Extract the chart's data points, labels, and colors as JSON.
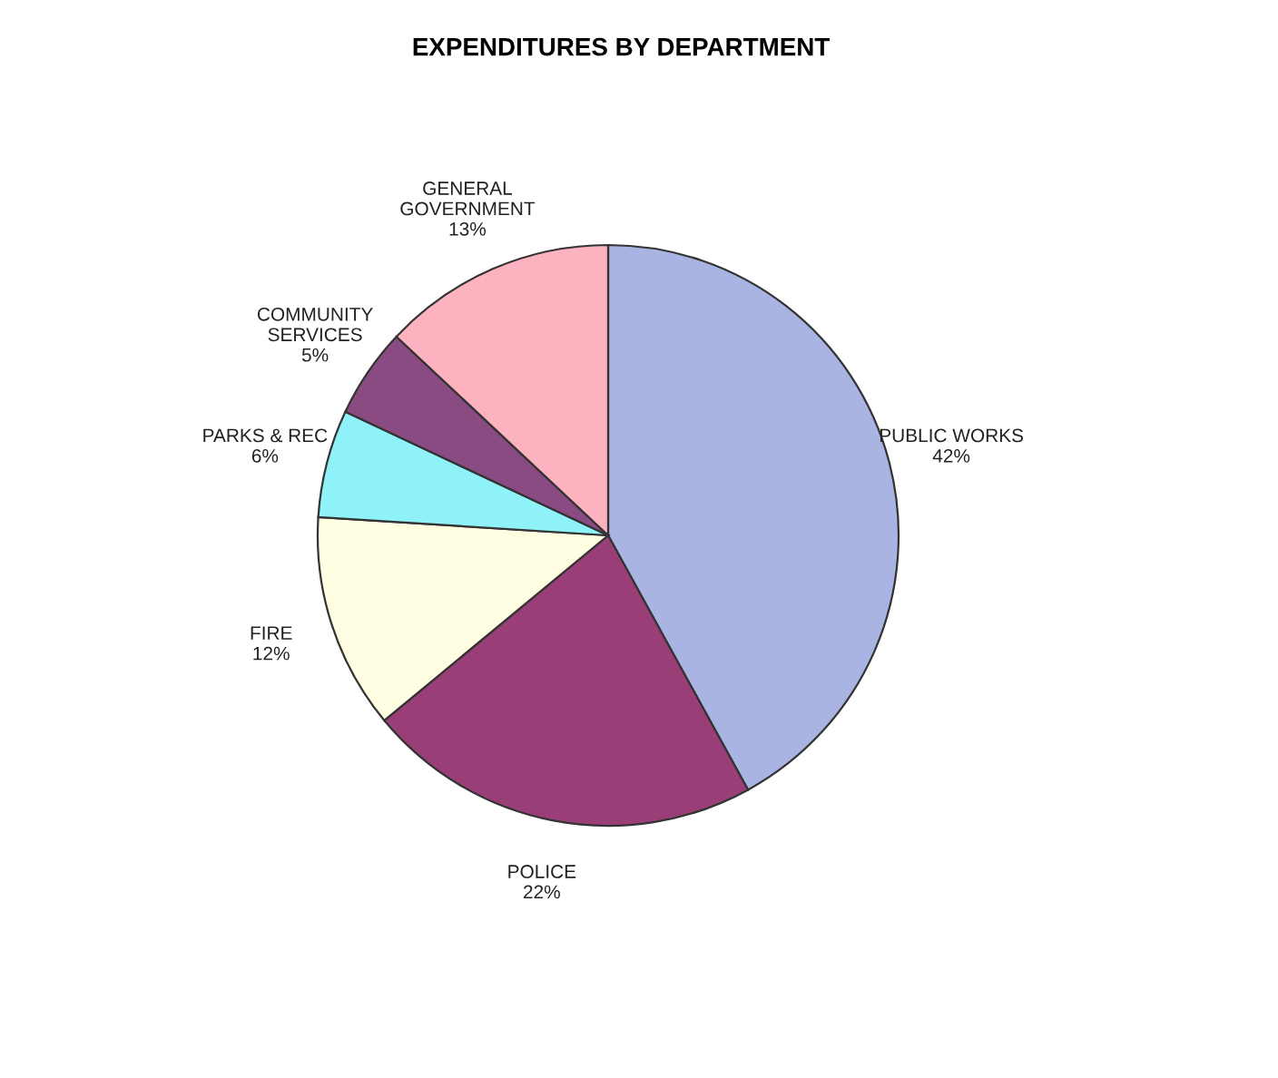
{
  "chart_data": {
    "type": "pie",
    "title": "EXPENDITURES BY DEPARTMENT",
    "categories": [
      "PUBLIC WORKS",
      "POLICE",
      "FIRE",
      "PARKS & REC",
      "COMMUNITY\nSERVICES",
      "GENERAL\nGOVERNMENT"
    ],
    "values": [
      42,
      22,
      12,
      6,
      5,
      13
    ],
    "value_labels": [
      "42%",
      "22%",
      "12%",
      "6%",
      "5%",
      "13%"
    ],
    "colors": [
      "#aab4e2",
      "#9a3e78",
      "#fffee2",
      "#8ef2f8",
      "#8a4a82",
      "#fcb2bf"
    ],
    "legend": false
  }
}
